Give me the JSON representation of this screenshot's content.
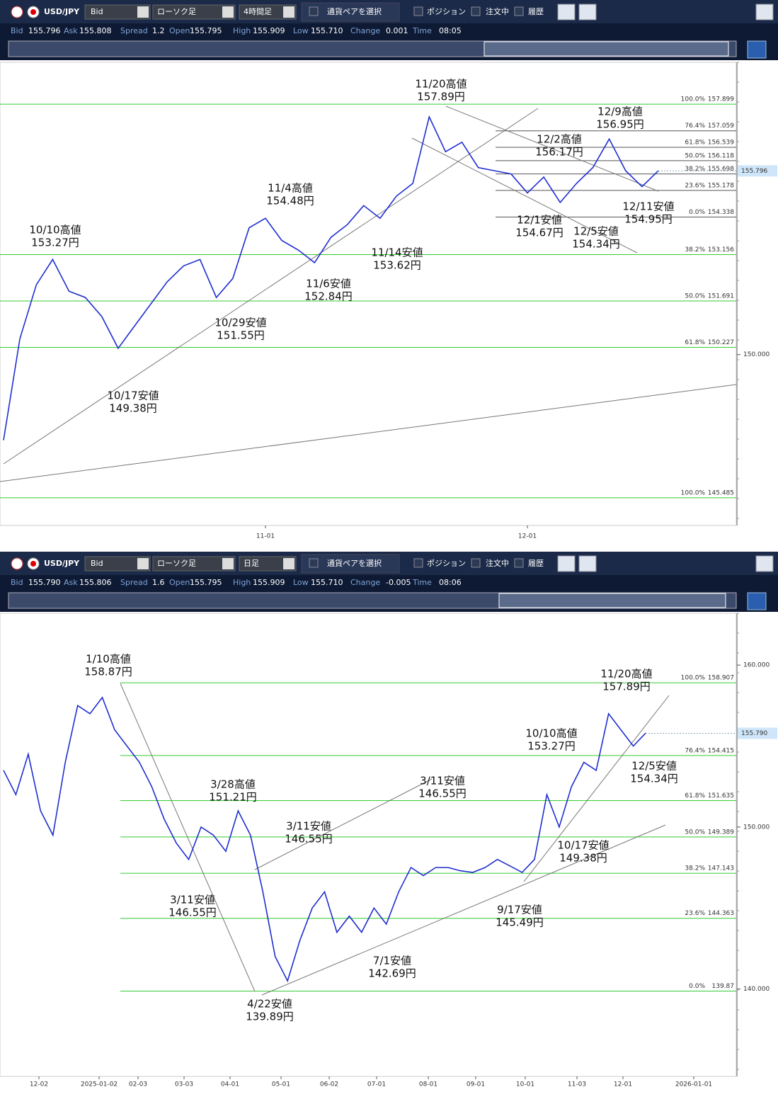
{
  "panels": [
    {
      "toolbar": {
        "symbol": "USD/JPY",
        "price_type": "Bid",
        "chart_type": "ローソク足",
        "timeframe": "4時間足",
        "pair_select": "通貨ペアを選択",
        "position": "ポジション",
        "orders": "注文中",
        "history": "履歴"
      },
      "info": [
        {
          "label": "Bid",
          "value": "155.796"
        },
        {
          "label": "Ask",
          "value": "155.808"
        },
        {
          "label": "Spread",
          "value": "1.2"
        },
        {
          "label": "Open",
          "value": "155.795"
        },
        {
          "label": "High",
          "value": "155.909"
        },
        {
          "label": "Low",
          "value": "155.710"
        },
        {
          "label": "Change",
          "value": "0.001"
        },
        {
          "label": "Time",
          "value": "08:05"
        }
      ],
      "chart": {
        "ylim": [
          144.61,
          159.22
        ],
        "yticks": [
          {
            "value": 150,
            "label": "150.000"
          }
        ],
        "current_price": {
          "value": 155.796,
          "label": "155.796"
        },
        "price_path": [
          147.3,
          150.5,
          152.2,
          153.0,
          152.0,
          151.8,
          151.2,
          150.2,
          150.9,
          151.6,
          152.3,
          152.8,
          153.0,
          151.8,
          152.4,
          154.0,
          154.3,
          153.6,
          153.3,
          152.9,
          153.7,
          154.1,
          154.7,
          154.3,
          155.0,
          155.4,
          157.5,
          156.4,
          156.7,
          155.9,
          155.8,
          155.7,
          155.1,
          155.6,
          154.8,
          155.4,
          155.9,
          156.8,
          155.8,
          155.3,
          155.8
        ],
        "fibs": [
          {
            "color": "#33cc33",
            "levels": [
              {
                "pct": "100.0%",
                "value": 157.899
              },
              {
                "pct": "38.2%",
                "value": 153.156
              },
              {
                "pct": "50.0%",
                "value": 151.691
              },
              {
                "pct": "61.8%",
                "value": 150.227
              },
              {
                "pct": "100.0%",
                "value": 145.485
              }
            ]
          },
          {
            "color": "#555555",
            "levels": [
              {
                "pct": "76.4%",
                "value": 157.059
              },
              {
                "pct": "61.8%",
                "value": 156.539
              },
              {
                "pct": "50.0%",
                "value": 156.118
              },
              {
                "pct": "38.2%",
                "value": 155.698
              },
              {
                "pct": "23.6%",
                "value": 155.178
              },
              {
                "pct": "0.0%",
                "value": 154.338
              }
            ]
          }
        ],
        "xticks": [
          "11-01",
          "12-01"
        ],
        "annotations": [
          [
            "10/10高値",
            "153.27円"
          ],
          [
            "11/4高値",
            "154.48円"
          ],
          [
            "11/20高値",
            "157.89円"
          ],
          [
            "12/9高値",
            "156.95円"
          ],
          [
            "12/2高値",
            "156.17円"
          ],
          [
            "11/14安値",
            "153.62円"
          ],
          [
            "11/6安値",
            "152.84円"
          ],
          [
            "10/29安値",
            "151.55円"
          ],
          [
            "10/17安値",
            "149.38円"
          ],
          [
            "12/1安値",
            "154.67円"
          ],
          [
            "12/5安値",
            "154.34円"
          ],
          [
            "12/11安値",
            "154.95円"
          ]
        ]
      }
    },
    {
      "toolbar": {
        "symbol": "USD/JPY",
        "price_type": "Bid",
        "chart_type": "ローソク足",
        "timeframe": "日足",
        "pair_select": "通貨ペアを選択",
        "position": "ポジション",
        "orders": "注文中",
        "history": "履歴"
      },
      "info": [
        {
          "label": "Bid",
          "value": "155.790"
        },
        {
          "label": "Ask",
          "value": "155.806"
        },
        {
          "label": "Spread",
          "value": "1.6"
        },
        {
          "label": "Open",
          "value": "155.795"
        },
        {
          "label": "High",
          "value": "155.909"
        },
        {
          "label": "Low",
          "value": "155.710"
        },
        {
          "label": "Change",
          "value": "-0.005"
        },
        {
          "label": "Time",
          "value": "08:06"
        }
      ],
      "chart": {
        "ylim": [
          134.6,
          163.2
        ],
        "yticks": [
          {
            "value": 160,
            "label": "160.000"
          },
          {
            "value": 150,
            "label": "150.000"
          },
          {
            "value": 140,
            "label": "140.000"
          }
        ],
        "current_price": {
          "value": 155.79,
          "label": "155.790"
        },
        "price_path": [
          153.5,
          152.0,
          154.5,
          151.0,
          149.5,
          154.0,
          157.5,
          157.0,
          158.0,
          156.0,
          155.0,
          154.0,
          152.5,
          150.5,
          149.0,
          148.0,
          150.0,
          149.5,
          148.5,
          151.0,
          149.5,
          146.0,
          142.0,
          140.5,
          143.0,
          145.0,
          146.0,
          143.5,
          144.5,
          143.5,
          145.0,
          144.0,
          146.0,
          147.5,
          147.0,
          147.5,
          147.5,
          147.3,
          147.2,
          147.5,
          148.0,
          147.6,
          147.2,
          148.0,
          152.0,
          150.0,
          152.5,
          154.0,
          153.5,
          157.0,
          156.0,
          155.0,
          155.8
        ],
        "fibs": [
          {
            "color": "#33cc33",
            "levels": [
              {
                "pct": "100.0%",
                "value": 158.907
              },
              {
                "pct": "76.4%",
                "value": 154.415
              },
              {
                "pct": "61.8%",
                "value": 151.635
              },
              {
                "pct": "50.0%",
                "value": 149.389
              },
              {
                "pct": "38.2%",
                "value": 147.143
              },
              {
                "pct": "23.6%",
                "value": 144.363
              },
              {
                "pct": "0.0%",
                "value": 139.87
              }
            ]
          }
        ],
        "xticks": [
          "12-02",
          "2025-01-02",
          "02-03",
          "03-03",
          "04-01",
          "05-01",
          "06-02",
          "07-01",
          "08-01",
          "09-01",
          "10-01",
          "11-03",
          "12-01",
          "2026-01-01"
        ],
        "annotations": [
          [
            "1/10高値",
            "158.87円"
          ],
          [
            "3/28高値",
            "151.21円"
          ],
          [
            "3/11安値",
            "146.55円"
          ],
          [
            "3/11安値",
            "146.55円"
          ],
          [
            "10/10高値",
            "153.27円"
          ],
          [
            "11/20高値",
            "157.89円"
          ],
          [
            "12/5安値",
            "154.34円"
          ],
          [
            "10/17安値",
            "149.38円"
          ],
          [
            "9/17安値",
            "145.49円"
          ],
          [
            "7/1安値",
            "142.69円"
          ],
          [
            "3/11安値",
            "146.55円"
          ],
          [
            "4/22安値",
            "139.89円"
          ]
        ]
      }
    }
  ]
}
